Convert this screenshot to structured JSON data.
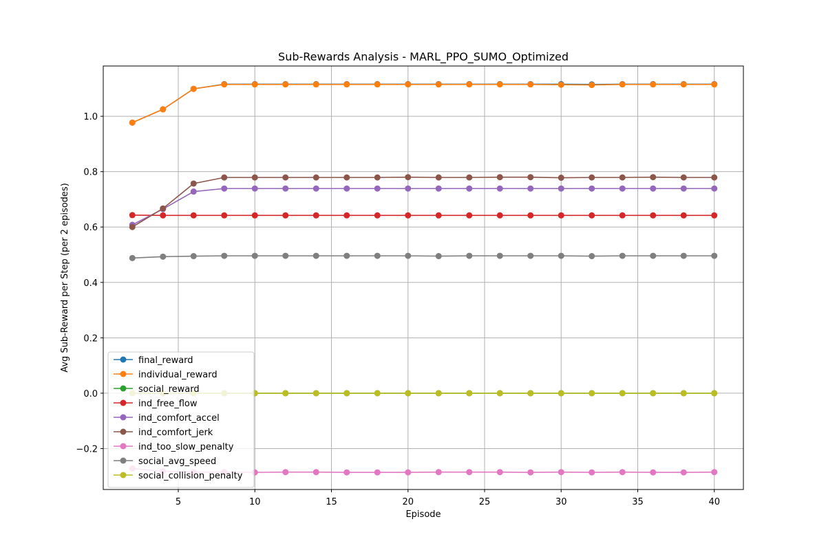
{
  "chart_data": {
    "type": "line",
    "title": "Sub-Rewards Analysis - MARL_PPO_SUMO_Optimized",
    "xlabel": "Episode",
    "ylabel": "Avg Sub-Reward per Step (per 2 episodes)",
    "xlim": [
      0.1,
      41.9
    ],
    "ylim": [
      -0.3478,
      1.1815
    ],
    "x_ticks": [
      5,
      10,
      15,
      20,
      25,
      30,
      35,
      40
    ],
    "y_ticks": [
      -0.2,
      0.0,
      0.2,
      0.4,
      0.6,
      0.8,
      1.0
    ],
    "x_tick_labels": [
      "5",
      "10",
      "15",
      "20",
      "25",
      "30",
      "35",
      "40"
    ],
    "y_tick_labels": [
      "−0.2",
      "0.0",
      "0.2",
      "0.4",
      "0.6",
      "0.8",
      "1.0"
    ],
    "grid": true,
    "legend_position": "lower-left",
    "x": [
      2,
      4,
      6,
      8,
      10,
      12,
      14,
      16,
      18,
      20,
      22,
      24,
      26,
      28,
      30,
      32,
      34,
      36,
      38,
      40
    ],
    "series": [
      {
        "name": "final_reward",
        "color": "#1f77b4",
        "values": [
          0.977,
          1.025,
          1.099,
          1.116,
          1.116,
          1.116,
          1.116,
          1.116,
          1.116,
          1.116,
          1.116,
          1.116,
          1.116,
          1.116,
          1.116,
          1.115,
          1.116,
          1.116,
          1.116,
          1.116
        ]
      },
      {
        "name": "individual_reward",
        "color": "#ff7f0e",
        "values": [
          0.977,
          1.025,
          1.099,
          1.115,
          1.115,
          1.115,
          1.115,
          1.115,
          1.115,
          1.115,
          1.115,
          1.115,
          1.115,
          1.115,
          1.114,
          1.113,
          1.115,
          1.115,
          1.115,
          1.115
        ]
      },
      {
        "name": "social_reward",
        "color": "#2ca02c",
        "values": [
          0.0,
          0.0,
          0.0,
          0.0,
          0.0,
          0.0,
          0.0,
          0.0,
          0.0,
          0.0,
          0.0,
          0.0,
          0.0,
          0.0,
          0.0,
          0.0,
          0.0,
          0.0,
          0.0,
          0.0
        ]
      },
      {
        "name": "ind_free_flow",
        "color": "#d62728",
        "values": [
          0.643,
          0.642,
          0.642,
          0.642,
          0.642,
          0.642,
          0.642,
          0.642,
          0.642,
          0.642,
          0.642,
          0.642,
          0.642,
          0.642,
          0.642,
          0.642,
          0.642,
          0.642,
          0.642,
          0.642
        ]
      },
      {
        "name": "ind_comfort_accel",
        "color": "#9467bd",
        "values": [
          0.608,
          0.665,
          0.728,
          0.739,
          0.739,
          0.739,
          0.739,
          0.739,
          0.739,
          0.739,
          0.739,
          0.739,
          0.739,
          0.739,
          0.739,
          0.739,
          0.739,
          0.739,
          0.739,
          0.739
        ]
      },
      {
        "name": "ind_comfort_jerk",
        "color": "#8c564b",
        "values": [
          0.6,
          0.667,
          0.757,
          0.779,
          0.779,
          0.779,
          0.779,
          0.779,
          0.779,
          0.78,
          0.779,
          0.779,
          0.78,
          0.78,
          0.778,
          0.779,
          0.779,
          0.78,
          0.779,
          0.779
        ]
      },
      {
        "name": "ind_too_slow_penalty",
        "color": "#e377c2",
        "values": [
          -0.272,
          -0.282,
          -0.285,
          -0.285,
          -0.286,
          -0.285,
          -0.285,
          -0.286,
          -0.286,
          -0.286,
          -0.285,
          -0.285,
          -0.285,
          -0.286,
          -0.285,
          -0.286,
          -0.285,
          -0.286,
          -0.286,
          -0.285
        ]
      },
      {
        "name": "social_avg_speed",
        "color": "#7f7f7f",
        "values": [
          0.488,
          0.493,
          0.495,
          0.496,
          0.496,
          0.496,
          0.496,
          0.496,
          0.496,
          0.496,
          0.495,
          0.496,
          0.496,
          0.496,
          0.496,
          0.495,
          0.496,
          0.496,
          0.496,
          0.496
        ]
      },
      {
        "name": "social_collision_penalty",
        "color": "#bcbd22",
        "values": [
          0.0,
          0.0,
          0.0,
          0.0,
          0.0,
          0.0,
          0.0,
          0.0,
          0.0,
          0.0,
          0.0,
          0.0,
          0.0,
          0.0,
          0.0,
          0.0,
          0.0,
          0.0,
          0.0,
          0.0
        ]
      }
    ]
  }
}
